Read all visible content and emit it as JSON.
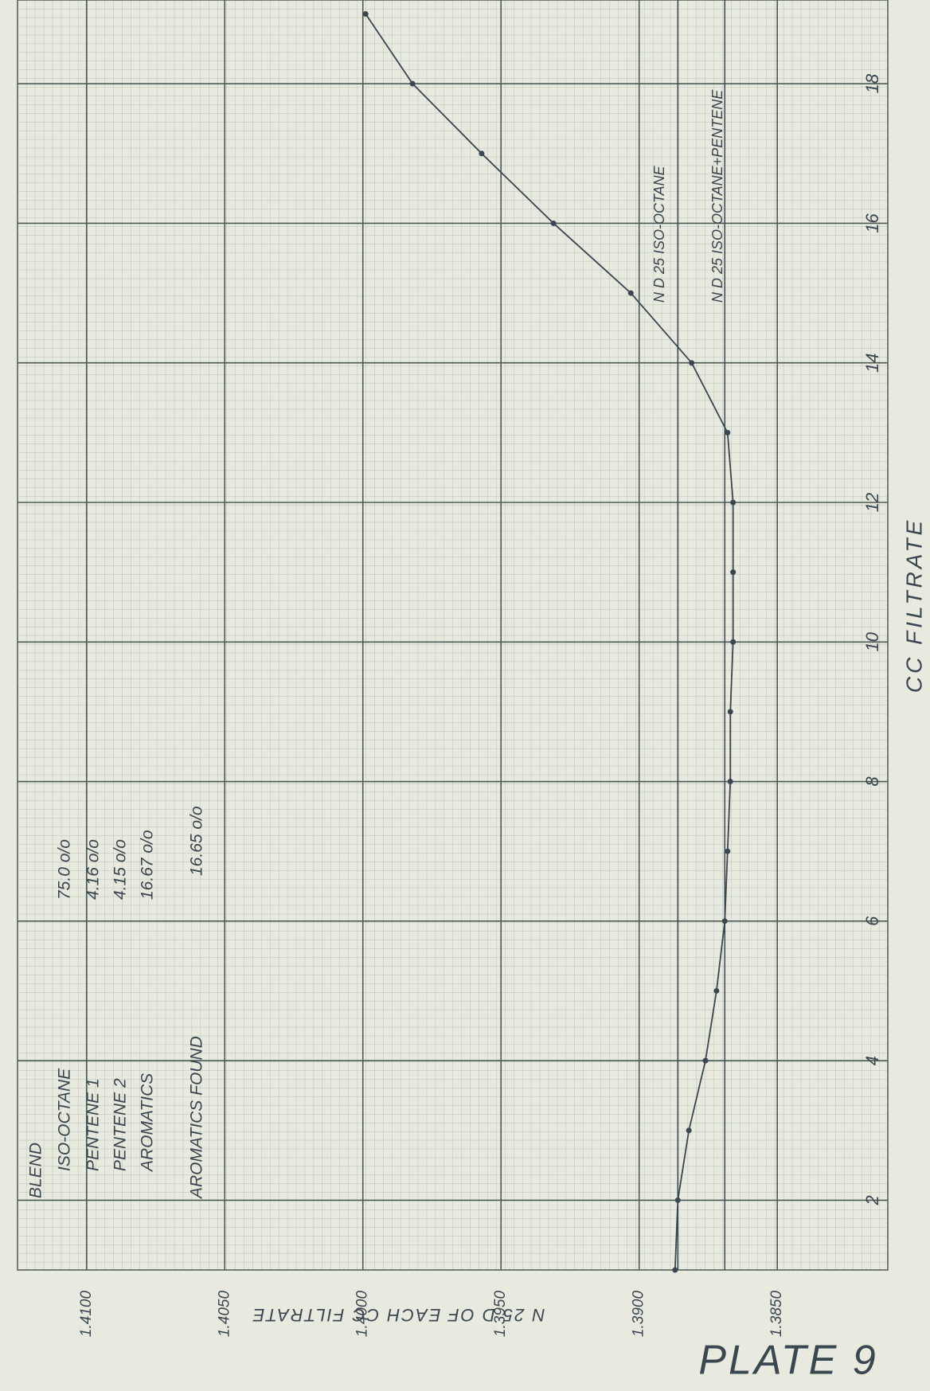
{
  "chart_data": {
    "type": "line",
    "x_label": "CC FILTRATE",
    "y_label": "N 25 D OF EACH CC FILTRATE",
    "plate": "PLATE 9",
    "x": [
      1,
      2,
      3,
      4,
      5,
      6,
      7,
      8,
      9,
      10,
      11,
      12,
      13,
      14,
      15,
      16,
      17,
      18,
      19
    ],
    "series": [
      {
        "color": "#3a4650",
        "values": [
          1.3887,
          1.3886,
          1.3882,
          1.3876,
          1.3872,
          1.3869,
          1.3868,
          1.3867,
          1.3867,
          1.3866,
          1.3866,
          1.3866,
          1.3868,
          1.3881,
          1.3903,
          1.3931,
          1.3957,
          1.3982,
          1.3999
        ]
      }
    ],
    "xlim": [
      1,
      19.2
    ],
    "xticks": [
      2,
      4,
      6,
      8,
      10,
      12,
      14,
      16,
      18
    ],
    "ylim": [
      1.4125,
      1.381
    ],
    "yticks": [
      {
        "value": 1.41,
        "label": "1.4100"
      },
      {
        "value": 1.405,
        "label": "1.4050"
      },
      {
        "value": 1.4,
        "label": "1.4000"
      },
      {
        "value": 1.395,
        "label": "1.3950"
      },
      {
        "value": 1.39,
        "label": "1.3900"
      },
      {
        "value": 1.385,
        "label": "1.3850"
      }
    ],
    "grid": true,
    "reference_lines": [
      {
        "value": 1.3886,
        "label": "N D 25 ISO-OCTANE"
      },
      {
        "value": 1.3869,
        "label": "N D 25 ISO-OCTANE+PENTENE"
      }
    ],
    "blend": {
      "title": "BLEND",
      "rows": [
        [
          "ISO-OCTANE",
          "75.0 o/o"
        ],
        [
          "PENTENE 1",
          "4.16 o/o"
        ],
        [
          "PENTENE 2",
          "4.15 o/o"
        ],
        [
          "AROMATICS",
          "16.67 o/o"
        ],
        [
          "AROMATICS FOUND",
          "16.65 o/o"
        ]
      ]
    }
  }
}
